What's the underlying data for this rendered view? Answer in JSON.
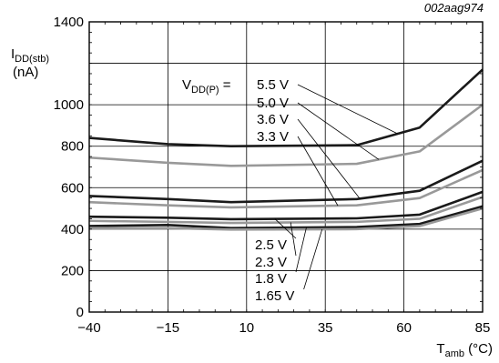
{
  "chart_data": {
    "type": "line",
    "reference": "002aag974",
    "x": [
      -40,
      -15,
      5,
      45,
      65,
      85
    ],
    "xticks": [
      "−40",
      "−15",
      "10",
      "35",
      "60",
      "85"
    ],
    "xtick_values": [
      -40,
      -15,
      10,
      35,
      60,
      85
    ],
    "yticks": [
      "0",
      "200",
      "400",
      "600",
      "800",
      "1000",
      "1400"
    ],
    "ytick_values": [
      0,
      200,
      400,
      600,
      800,
      1000,
      1400
    ],
    "xlim": [
      -40,
      85
    ],
    "ylim": [
      0,
      1400
    ],
    "grid": true,
    "xlabel": {
      "main": "T",
      "sub": "amb",
      "rest": " (°C)"
    },
    "ylabel": {
      "main": "I",
      "sub": "DD(stb)",
      "unit": "(nA)"
    },
    "legend_prefix": {
      "main": "V",
      "sub": "DD(P)",
      "rest": " = "
    },
    "series": [
      {
        "name": "5.5 V",
        "color": "#1a1a1a",
        "values": [
          840,
          810,
          800,
          805,
          890,
          1170
        ]
      },
      {
        "name": "5.0 V",
        "color": "#999999",
        "values": [
          745,
          720,
          705,
          715,
          775,
          1000
        ]
      },
      {
        "name": "3.6 V",
        "color": "#1a1a1a",
        "values": [
          560,
          545,
          530,
          545,
          585,
          730
        ]
      },
      {
        "name": "3.3 V",
        "color": "#999999",
        "values": [
          530,
          515,
          505,
          515,
          550,
          685
        ]
      },
      {
        "name": "2.5 V",
        "color": "#1a1a1a",
        "values": [
          460,
          455,
          448,
          452,
          470,
          580
        ]
      },
      {
        "name": "2.3 V",
        "color": "#999999",
        "values": [
          440,
          435,
          430,
          435,
          450,
          555
        ]
      },
      {
        "name": "1.8 V",
        "color": "#1a1a1a",
        "values": [
          415,
          420,
          405,
          410,
          425,
          510
        ]
      },
      {
        "name": "1.65 V",
        "color": "#999999",
        "values": [
          405,
          405,
          398,
          400,
          415,
          500
        ]
      }
    ]
  }
}
